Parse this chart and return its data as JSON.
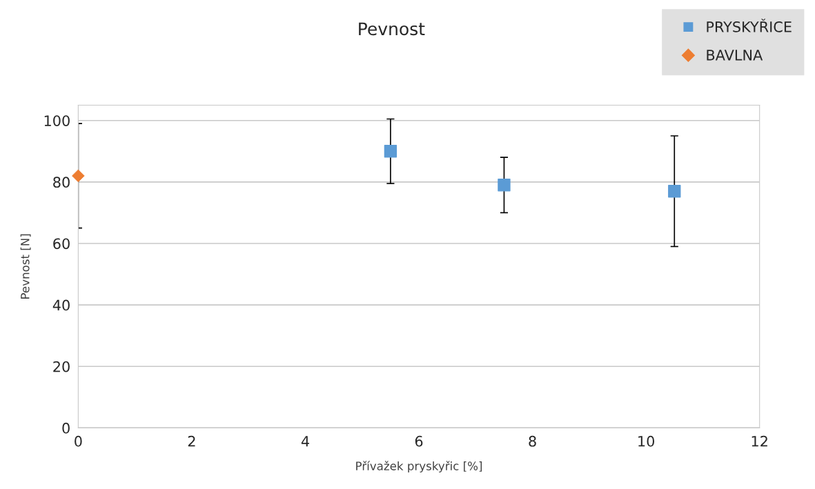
{
  "chart_data": {
    "type": "scatter",
    "title": "Pevnost",
    "xlabel": "Přívažek pryskyřic [%]",
    "ylabel": "Pevnost [N]",
    "series": [
      {
        "name": "PRYSKYŘICE",
        "color": "#5b9bd5",
        "marker": "square",
        "x": [
          5.5,
          7.5,
          10.5
        ],
        "values": [
          90,
          79,
          77
        ],
        "errors": [
          10.5,
          9,
          18
        ]
      },
      {
        "name": "BAVLNA",
        "color": "#ed7d31",
        "marker": "diamond",
        "x": [
          0
        ],
        "values": [
          82
        ],
        "errors": [
          17
        ]
      }
    ],
    "xlim": [
      0,
      12
    ],
    "xticks": [
      0,
      2,
      4,
      6,
      8,
      10,
      12
    ],
    "ylim": [
      0,
      105
    ],
    "yticks": [
      0,
      20,
      40,
      60,
      80,
      100
    ],
    "grid": "y",
    "legend": "top right"
  }
}
